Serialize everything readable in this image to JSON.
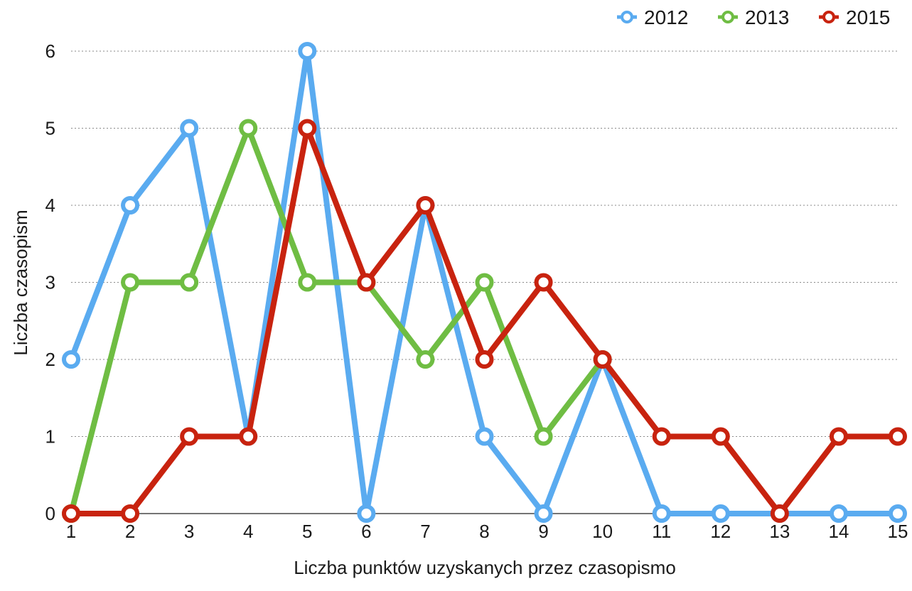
{
  "chart_data": {
    "type": "line",
    "title": "",
    "xlabel": "Liczba punktów uzyskanych przez czasopismo",
    "ylabel": "Liczba czasopism",
    "x": [
      1,
      2,
      3,
      4,
      5,
      6,
      7,
      8,
      9,
      10,
      11,
      12,
      13,
      14,
      15
    ],
    "xlim": [
      1,
      15
    ],
    "ylim": [
      0,
      6
    ],
    "yticks": [
      0,
      1,
      2,
      3,
      4,
      5,
      6
    ],
    "grid": "horizontal dotted",
    "legend_position": "top-right",
    "series": [
      {
        "name": "2012",
        "color": "#5aabf0",
        "values": [
          2,
          4,
          5,
          1,
          6,
          0,
          4,
          1,
          0,
          2,
          0,
          0,
          0,
          0,
          0
        ]
      },
      {
        "name": "2013",
        "color": "#6fbd43",
        "values": [
          0,
          3,
          3,
          5,
          3,
          3,
          2,
          3,
          1,
          2,
          null,
          null,
          null,
          null,
          null
        ]
      },
      {
        "name": "2015",
        "color": "#c8230f",
        "values": [
          0,
          0,
          1,
          1,
          5,
          3,
          4,
          2,
          3,
          2,
          1,
          1,
          0,
          1,
          1
        ]
      }
    ]
  }
}
